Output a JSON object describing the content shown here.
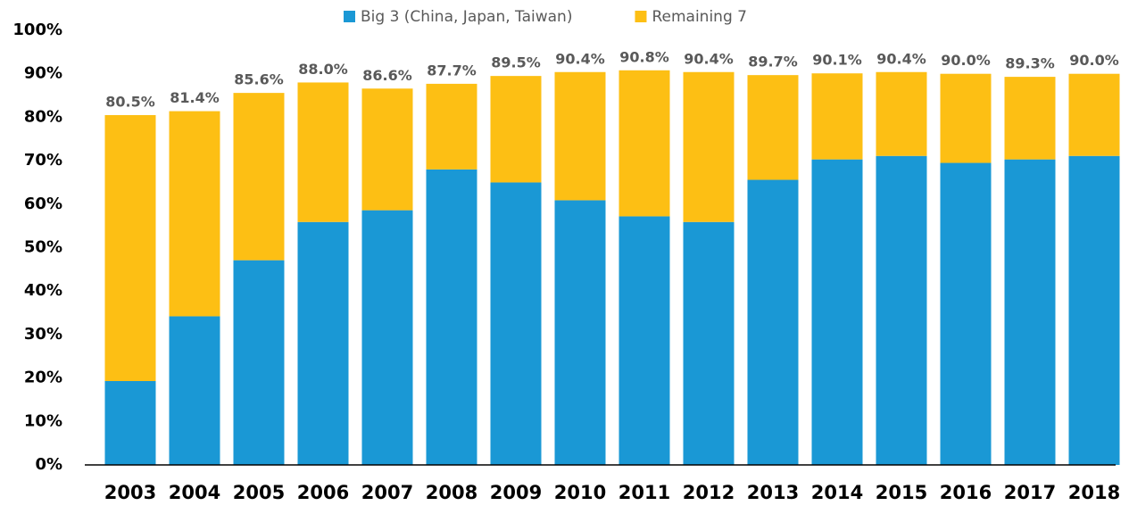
{
  "chart_data": {
    "type": "stacked_bar",
    "categories": [
      "2003",
      "2004",
      "2005",
      "2006",
      "2007",
      "2008",
      "2009",
      "2010",
      "2011",
      "2012",
      "2013",
      "2014",
      "2015",
      "2016",
      "2017",
      "2018"
    ],
    "series": [
      {
        "name": "Big 3 (China, Japan, Taiwan)",
        "color": "#1a98d5",
        "values": [
          19.3,
          34.2,
          47.1,
          55.9,
          58.6,
          68.0,
          65.0,
          60.9,
          57.2,
          55.9,
          65.6,
          70.3,
          71.1,
          69.5,
          70.3,
          71.1
        ]
      },
      {
        "name": "Remaining 7",
        "color": "#fdbf14",
        "values": [
          61.2,
          47.2,
          38.5,
          32.1,
          28.0,
          19.7,
          24.5,
          29.5,
          33.6,
          34.5,
          24.1,
          19.8,
          19.3,
          20.5,
          19.0,
          18.9
        ]
      }
    ],
    "totals": [
      80.5,
      81.4,
      85.6,
      88.0,
      86.6,
      87.7,
      89.5,
      90.4,
      90.8,
      90.4,
      89.7,
      90.1,
      90.4,
      90.0,
      89.3,
      90.0
    ],
    "total_labels": [
      "80.5%",
      "81.4%",
      "85.6%",
      "88.0%",
      "86.6%",
      "87.7%",
      "89.5%",
      "90.4%",
      "90.8%",
      "90.4%",
      "89.7%",
      "90.1%",
      "90.4%",
      "90.0%",
      "89.3%",
      "90.0%"
    ],
    "ylim": [
      0,
      100
    ],
    "yticks": [
      {
        "value": 0,
        "label": "0%"
      },
      {
        "value": 10,
        "label": "10%"
      },
      {
        "value": 20,
        "label": "20%"
      },
      {
        "value": 30,
        "label": "30%"
      },
      {
        "value": 40,
        "label": "40%"
      },
      {
        "value": 50,
        "label": "50%"
      },
      {
        "value": 60,
        "label": "60%"
      },
      {
        "value": 70,
        "label": "70%"
      },
      {
        "value": 80,
        "label": "80%"
      },
      {
        "value": 90,
        "label": "90%"
      },
      {
        "value": 100,
        "label": "100%"
      }
    ],
    "legend": "top",
    "grid": false
  }
}
